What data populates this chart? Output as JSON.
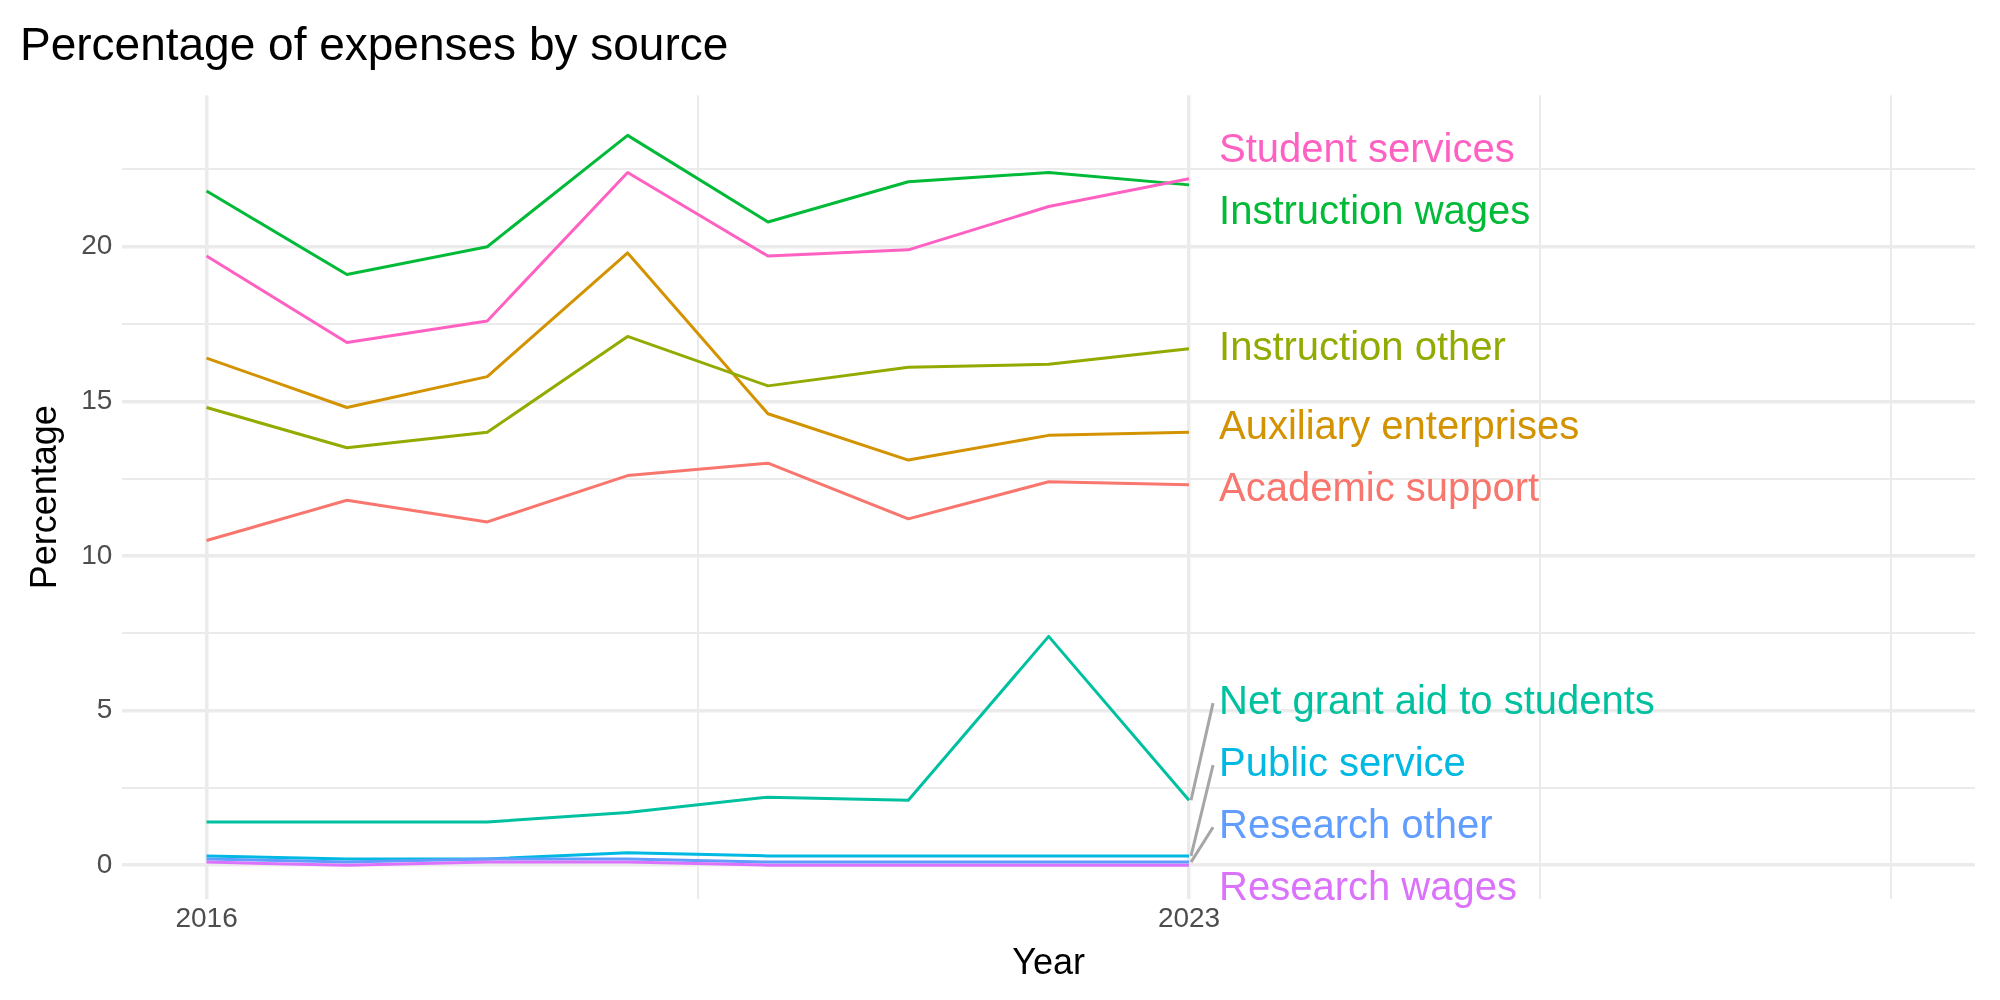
{
  "chart_data": {
    "type": "line",
    "title": "Percentage of expenses by source",
    "xlabel": "Year",
    "ylabel": "Percentage",
    "x": [
      2016,
      2017,
      2018,
      2019,
      2020,
      2021,
      2022,
      2023
    ],
    "xlim": [
      2015.4,
      2028.6
    ],
    "xticks": [
      2016,
      {
        "value": 2019.5,
        "label": null
      },
      2023,
      {
        "value": 2025.5,
        "label": null
      },
      {
        "value": 2028,
        "label": null
      }
    ],
    "ylim": [
      -1.1,
      24.9
    ],
    "yticks": [
      0,
      {
        "value": 2.5,
        "label": null
      },
      5,
      {
        "value": 7.5,
        "label": null
      },
      10,
      {
        "value": 12.5,
        "label": null
      },
      15,
      {
        "value": 17.5,
        "label": null
      },
      20,
      {
        "value": 22.5,
        "label": null
      }
    ],
    "grid": true,
    "legend": false,
    "marker": "none",
    "line_style": "solid",
    "series": [
      {
        "name": "Academic support",
        "color": "#f8766d",
        "values": [
          10.5,
          11.8,
          11.1,
          12.6,
          13.0,
          11.2,
          12.4,
          12.3
        ]
      },
      {
        "name": "Auxiliary enterprises",
        "color": "#d39200",
        "values": [
          16.4,
          14.8,
          15.8,
          19.8,
          14.6,
          13.1,
          13.9,
          14.0
        ]
      },
      {
        "name": "Instruction other",
        "color": "#93aa00",
        "values": [
          14.8,
          13.5,
          14.0,
          17.1,
          15.5,
          16.1,
          16.2,
          16.7
        ]
      },
      {
        "name": "Instruction wages",
        "color": "#00ba38",
        "values": [
          21.8,
          19.1,
          20.0,
          23.6,
          20.8,
          22.1,
          22.4,
          22.0
        ]
      },
      {
        "name": "Net grant aid to students",
        "color": "#00c19f",
        "values": [
          1.4,
          1.4,
          1.4,
          1.7,
          2.2,
          2.1,
          7.4,
          2.1
        ]
      },
      {
        "name": "Public service",
        "color": "#00b9e3",
        "values": [
          0.3,
          0.2,
          0.2,
          0.4,
          0.3,
          0.3,
          0.3,
          0.3
        ]
      },
      {
        "name": "Research other",
        "color": "#619cff",
        "values": [
          0.2,
          0.1,
          0.2,
          0.2,
          0.1,
          0.1,
          0.1,
          0.1
        ]
      },
      {
        "name": "Research wages",
        "color": "#db72fb",
        "values": [
          0.1,
          0.0,
          0.1,
          0.1,
          0.0,
          0.0,
          0.0,
          0.0
        ]
      },
      {
        "name": "Student services",
        "color": "#ff61c3",
        "values": [
          19.7,
          16.9,
          17.6,
          22.4,
          19.7,
          19.9,
          21.3,
          22.2
        ]
      }
    ]
  }
}
